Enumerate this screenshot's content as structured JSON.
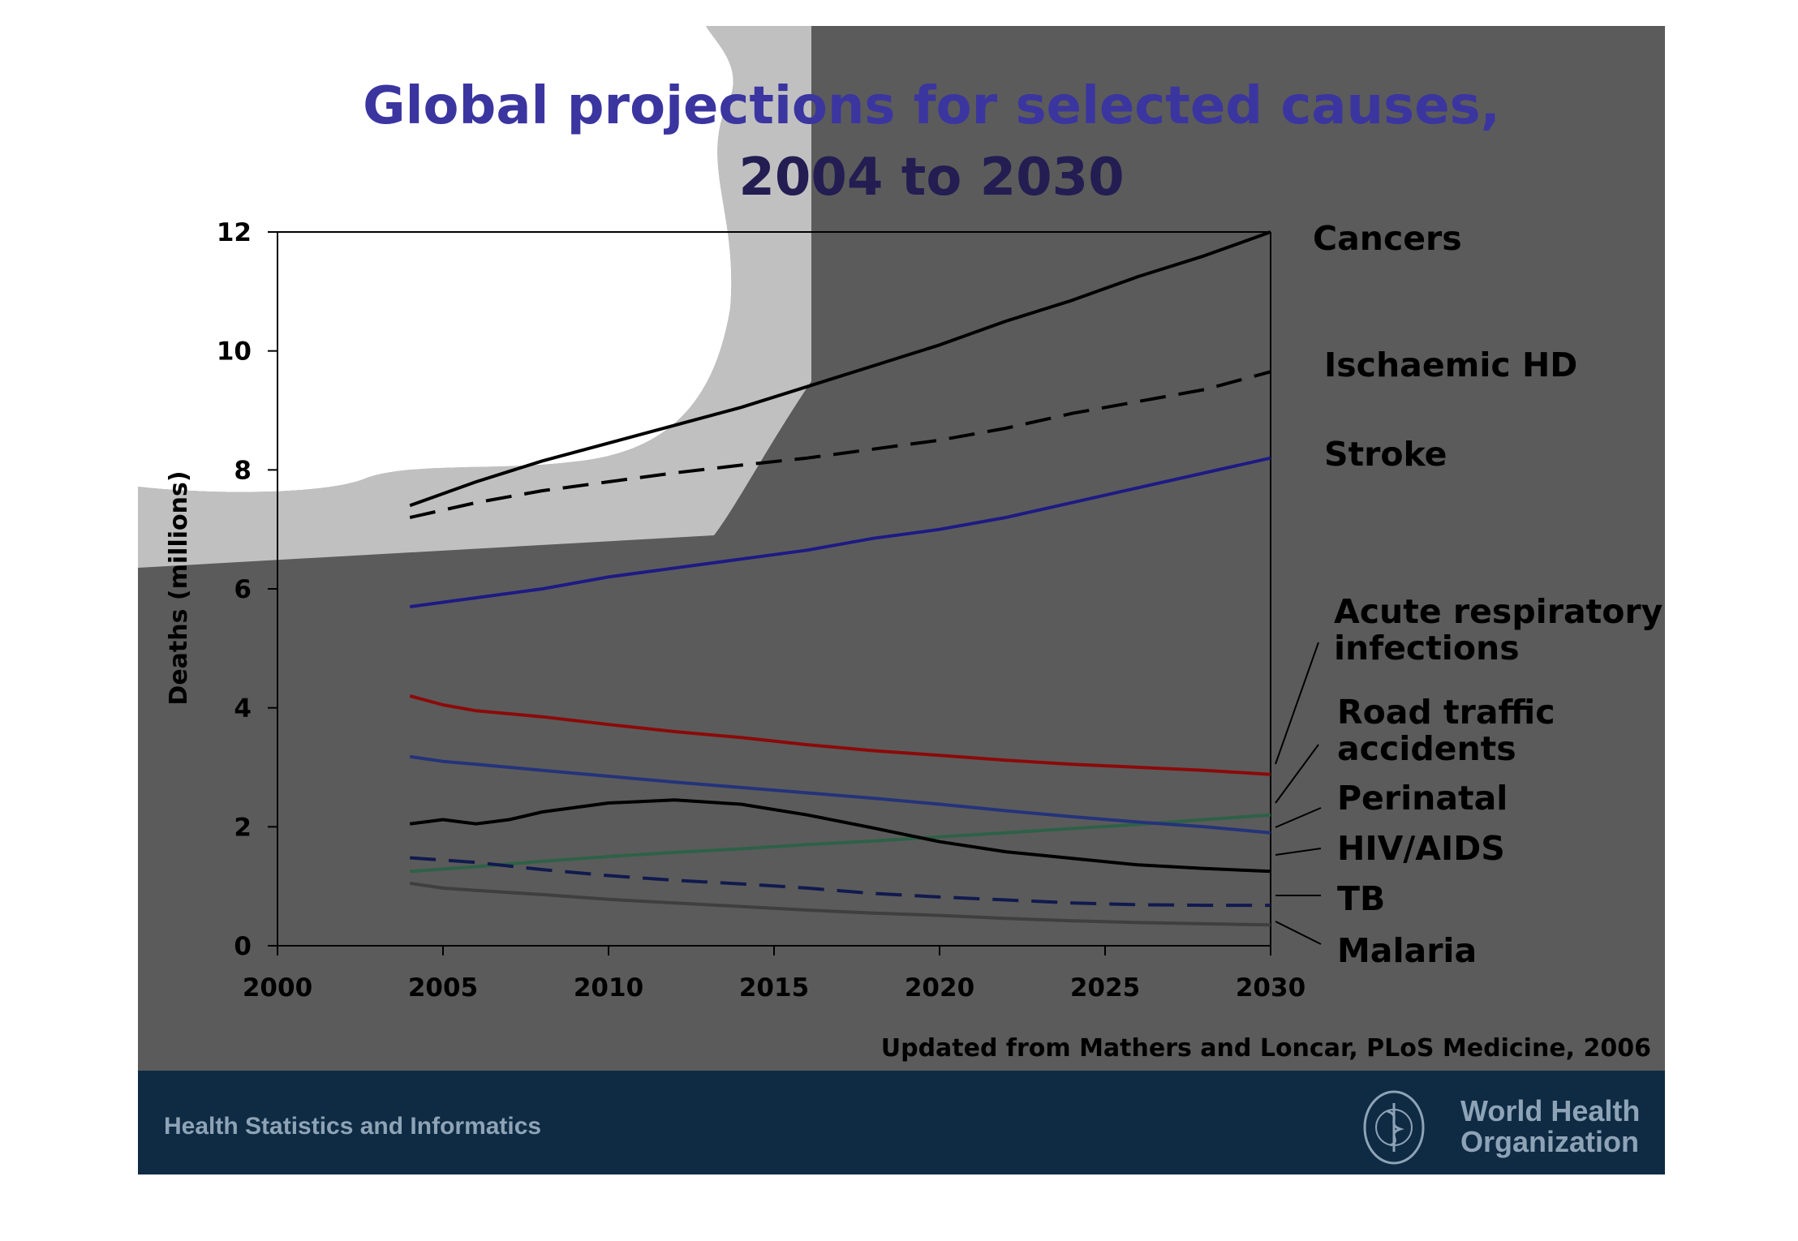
{
  "slide": {
    "title_line1": "Global projections for selected causes,",
    "title_line2": "2004 to 2030",
    "source": "Updated from Mathers and Loncar, PLoS Medicine, 2006",
    "footer_left": "Health Statistics and Informatics",
    "footer_org_line1": "World Health",
    "footer_org_line2": "Organization",
    "colors": {
      "title": "#3b35a0",
      "background_dark": "#5b5b5b",
      "background_light": "#c0c0c0",
      "footer_band": "#0f2b44",
      "footer_text": "#8ea3b6"
    }
  },
  "chart_data": {
    "type": "line",
    "title": "Global projections for selected causes, 2004 to 2030",
    "ylabel": "Deaths (millions)",
    "xlabel": "",
    "xlim": [
      2000,
      2030
    ],
    "ylim": [
      0,
      12
    ],
    "xticks": [
      2000,
      2005,
      2010,
      2015,
      2020,
      2025,
      2030
    ],
    "yticks": [
      0,
      2,
      4,
      6,
      8,
      10,
      12
    ],
    "grid": false,
    "legend": "right (direct labels)",
    "series": [
      {
        "name": "Cancers",
        "color": "#000000",
        "dash": "solid",
        "label_lines": [
          "Cancers"
        ],
        "points": [
          [
            2004,
            7.4
          ],
          [
            2006,
            7.8
          ],
          [
            2008,
            8.15
          ],
          [
            2010,
            8.45
          ],
          [
            2012,
            8.75
          ],
          [
            2014,
            9.05
          ],
          [
            2016,
            9.4
          ],
          [
            2018,
            9.75
          ],
          [
            2020,
            10.1
          ],
          [
            2022,
            10.5
          ],
          [
            2024,
            10.85
          ],
          [
            2026,
            11.25
          ],
          [
            2028,
            11.6
          ],
          [
            2030,
            12.0
          ]
        ]
      },
      {
        "name": "Ischaemic HD",
        "color": "#000000",
        "dash": "dashed",
        "label_lines": [
          "Ischaemic HD"
        ],
        "points": [
          [
            2004,
            7.2
          ],
          [
            2006,
            7.45
          ],
          [
            2008,
            7.65
          ],
          [
            2010,
            7.8
          ],
          [
            2012,
            7.95
          ],
          [
            2014,
            8.08
          ],
          [
            2016,
            8.2
          ],
          [
            2018,
            8.35
          ],
          [
            2020,
            8.5
          ],
          [
            2022,
            8.7
          ],
          [
            2024,
            8.95
          ],
          [
            2026,
            9.15
          ],
          [
            2028,
            9.35
          ],
          [
            2030,
            9.65
          ]
        ]
      },
      {
        "name": "Stroke",
        "color": "#1e1a84",
        "dash": "solid",
        "label_lines": [
          "Stroke"
        ],
        "points": [
          [
            2004,
            5.7
          ],
          [
            2006,
            5.85
          ],
          [
            2008,
            6.0
          ],
          [
            2010,
            6.2
          ],
          [
            2012,
            6.35
          ],
          [
            2014,
            6.5
          ],
          [
            2016,
            6.65
          ],
          [
            2018,
            6.85
          ],
          [
            2020,
            7.0
          ],
          [
            2022,
            7.2
          ],
          [
            2024,
            7.45
          ],
          [
            2026,
            7.7
          ],
          [
            2028,
            7.95
          ],
          [
            2030,
            8.2
          ]
        ]
      },
      {
        "name": "Acute respiratory infections",
        "color": "#8b0a0a",
        "dash": "solid",
        "label_lines": [
          "Acute respiratory",
          "infections"
        ],
        "points": [
          [
            2004,
            4.2
          ],
          [
            2005,
            4.05
          ],
          [
            2006,
            3.95
          ],
          [
            2008,
            3.85
          ],
          [
            2010,
            3.72
          ],
          [
            2012,
            3.6
          ],
          [
            2014,
            3.5
          ],
          [
            2016,
            3.38
          ],
          [
            2018,
            3.28
          ],
          [
            2020,
            3.2
          ],
          [
            2022,
            3.12
          ],
          [
            2024,
            3.05
          ],
          [
            2026,
            3.0
          ],
          [
            2028,
            2.95
          ],
          [
            2030,
            2.88
          ]
        ]
      },
      {
        "name": "Road traffic accidents",
        "color": "#2e6147",
        "dash": "solid",
        "label_lines": [
          "Road traffic",
          "accidents"
        ],
        "points": [
          [
            2004,
            1.25
          ],
          [
            2006,
            1.33
          ],
          [
            2008,
            1.42
          ],
          [
            2010,
            1.5
          ],
          [
            2012,
            1.57
          ],
          [
            2014,
            1.63
          ],
          [
            2016,
            1.7
          ],
          [
            2018,
            1.76
          ],
          [
            2020,
            1.83
          ],
          [
            2022,
            1.9
          ],
          [
            2024,
            1.97
          ],
          [
            2026,
            2.04
          ],
          [
            2028,
            2.12
          ],
          [
            2030,
            2.2
          ]
        ]
      },
      {
        "name": "Perinatal",
        "color": "#24337a",
        "dash": "solid",
        "label_lines": [
          "Perinatal"
        ],
        "points": [
          [
            2004,
            3.18
          ],
          [
            2005,
            3.1
          ],
          [
            2006,
            3.05
          ],
          [
            2008,
            2.95
          ],
          [
            2010,
            2.85
          ],
          [
            2012,
            2.75
          ],
          [
            2014,
            2.66
          ],
          [
            2016,
            2.57
          ],
          [
            2018,
            2.48
          ],
          [
            2020,
            2.38
          ],
          [
            2022,
            2.27
          ],
          [
            2024,
            2.17
          ],
          [
            2026,
            2.08
          ],
          [
            2028,
            2.0
          ],
          [
            2030,
            1.9
          ]
        ]
      },
      {
        "name": "HIV/AIDS",
        "color": "#000000",
        "dash": "solid",
        "label_lines": [
          "HIV/AIDS"
        ],
        "points": [
          [
            2004,
            2.05
          ],
          [
            2005,
            2.12
          ],
          [
            2006,
            2.05
          ],
          [
            2007,
            2.12
          ],
          [
            2008,
            2.25
          ],
          [
            2010,
            2.4
          ],
          [
            2012,
            2.45
          ],
          [
            2014,
            2.38
          ],
          [
            2016,
            2.2
          ],
          [
            2018,
            1.98
          ],
          [
            2020,
            1.75
          ],
          [
            2022,
            1.58
          ],
          [
            2024,
            1.47
          ],
          [
            2026,
            1.36
          ],
          [
            2028,
            1.3
          ],
          [
            2030,
            1.25
          ]
        ]
      },
      {
        "name": "TB",
        "color": "#111a4e",
        "dash": "dashed",
        "label_lines": [
          "TB"
        ],
        "points": [
          [
            2004,
            1.48
          ],
          [
            2006,
            1.4
          ],
          [
            2008,
            1.28
          ],
          [
            2010,
            1.18
          ],
          [
            2012,
            1.1
          ],
          [
            2014,
            1.04
          ],
          [
            2016,
            0.97
          ],
          [
            2018,
            0.88
          ],
          [
            2020,
            0.82
          ],
          [
            2022,
            0.77
          ],
          [
            2024,
            0.72
          ],
          [
            2026,
            0.69
          ],
          [
            2028,
            0.68
          ],
          [
            2030,
            0.68
          ]
        ]
      },
      {
        "name": "Malaria",
        "color": "#3f3f3f",
        "dash": "solid",
        "label_lines": [
          "Malaria"
        ],
        "points": [
          [
            2004,
            1.05
          ],
          [
            2005,
            0.97
          ],
          [
            2006,
            0.93
          ],
          [
            2008,
            0.86
          ],
          [
            2010,
            0.78
          ],
          [
            2012,
            0.72
          ],
          [
            2014,
            0.66
          ],
          [
            2016,
            0.6
          ],
          [
            2018,
            0.55
          ],
          [
            2020,
            0.51
          ],
          [
            2022,
            0.46
          ],
          [
            2024,
            0.42
          ],
          [
            2026,
            0.39
          ],
          [
            2028,
            0.37
          ],
          [
            2030,
            0.35
          ]
        ]
      }
    ]
  }
}
